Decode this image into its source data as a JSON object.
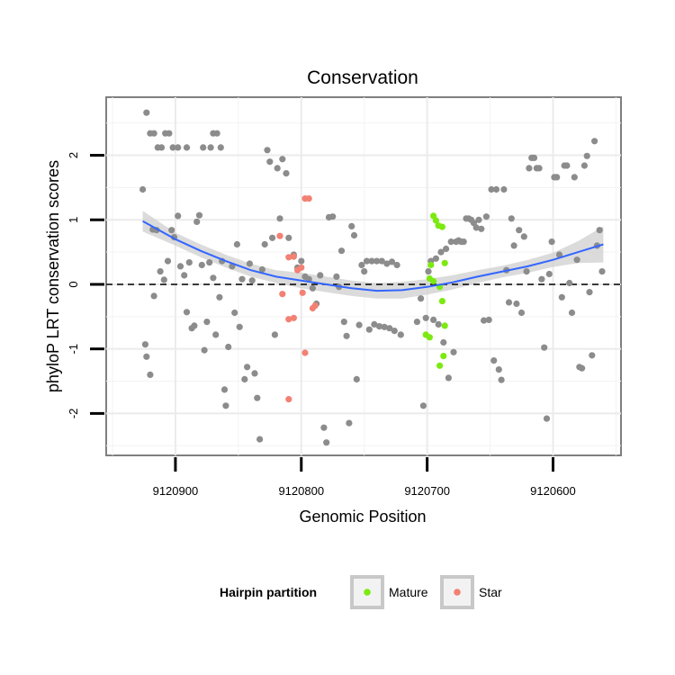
{
  "chart_data": {
    "type": "scatter",
    "title": "Conservation",
    "xlabel": "Genomic Position",
    "ylabel": "phyloP LRT conservation scores",
    "x_reversed": true,
    "xlim": [
      9120546,
      9120955
    ],
    "ylim": [
      -2.65,
      2.9
    ],
    "x_ticks": [
      9120900,
      9120800,
      9120700,
      9120600
    ],
    "y_ticks": [
      -2,
      -1,
      0,
      1,
      2
    ],
    "y_tick_labels": [
      "-2",
      "-1",
      "0",
      "1",
      "2"
    ],
    "reference_line": {
      "y": 0,
      "style": "dashed",
      "color": "#000000"
    },
    "grid": true,
    "legend": {
      "title": "Hairpin partition",
      "placement": "bottom",
      "entries": [
        {
          "label": "Mature",
          "color": "#7ce911"
        },
        {
          "label": "Star",
          "color": "#f28174"
        }
      ]
    },
    "colors": {
      "other": "#8c8c8c",
      "mature": "#7ce911",
      "star": "#f28174",
      "smooth": "#3366ff",
      "band": "#cfcfcf"
    },
    "smooth": {
      "x": [
        9120926,
        9120900,
        9120880,
        9120860,
        9120840,
        9120820,
        9120800,
        9120780,
        9120760,
        9120740,
        9120720,
        9120700,
        9120680,
        9120660,
        9120640,
        9120620,
        9120600,
        9120580,
        9120560
      ],
      "y": [
        0.98,
        0.7,
        0.52,
        0.36,
        0.22,
        0.12,
        0.06,
        0.0,
        -0.06,
        -0.1,
        -0.09,
        -0.04,
        0.03,
        0.12,
        0.2,
        0.28,
        0.38,
        0.5,
        0.62
      ],
      "lower": [
        0.82,
        0.6,
        0.42,
        0.26,
        0.12,
        0.02,
        -0.06,
        -0.12,
        -0.18,
        -0.22,
        -0.22,
        -0.16,
        -0.08,
        0.02,
        0.11,
        0.18,
        0.27,
        0.33,
        0.34
      ],
      "upper": [
        1.14,
        0.8,
        0.62,
        0.46,
        0.32,
        0.22,
        0.18,
        0.12,
        0.06,
        0.02,
        0.04,
        0.08,
        0.14,
        0.22,
        0.29,
        0.38,
        0.49,
        0.67,
        0.9
      ]
    },
    "series": [
      {
        "group": "other",
        "points": [
          [
            9120926,
            1.47
          ],
          [
            9120923,
            2.66
          ],
          [
            9120920,
            2.34
          ],
          [
            9120917,
            2.34
          ],
          [
            9120914,
            2.12
          ],
          [
            9120911,
            2.12
          ],
          [
            9120908,
            2.34
          ],
          [
            9120905,
            2.34
          ],
          [
            9120902,
            2.12
          ],
          [
            9120898,
            2.12
          ],
          [
            9120891,
            2.12
          ],
          [
            9120878,
            2.12
          ],
          [
            9120872,
            2.12
          ],
          [
            9120870,
            2.34
          ],
          [
            9120867,
            2.34
          ],
          [
            9120864,
            2.12
          ],
          [
            9120924,
            -0.93
          ],
          [
            9120923,
            -1.12
          ],
          [
            9120920,
            -1.4
          ],
          [
            9120917,
            -0.18
          ],
          [
            9120918,
            0.85
          ],
          [
            9120915,
            0.84
          ],
          [
            9120912,
            0.2
          ],
          [
            9120909,
            0.07
          ],
          [
            9120906,
            0.36
          ],
          [
            9120903,
            0.84
          ],
          [
            9120901,
            0.73
          ],
          [
            9120898,
            1.06
          ],
          [
            9120896,
            0.28
          ],
          [
            9120893,
            0.14
          ],
          [
            9120891,
            -0.43
          ],
          [
            9120889,
            0.34
          ],
          [
            9120887,
            -0.68
          ],
          [
            9120885,
            -0.64
          ],
          [
            9120883,
            0.97
          ],
          [
            9120881,
            1.07
          ],
          [
            9120879,
            0.3
          ],
          [
            9120877,
            -1.02
          ],
          [
            9120875,
            -0.58
          ],
          [
            9120873,
            0.34
          ],
          [
            9120870,
            0.1
          ],
          [
            9120868,
            -0.78
          ],
          [
            9120865,
            -0.2
          ],
          [
            9120863,
            0.36
          ],
          [
            9120861,
            -1.63
          ],
          [
            9120860,
            -1.88
          ],
          [
            9120858,
            -0.97
          ],
          [
            9120855,
            0.28
          ],
          [
            9120853,
            -0.44
          ],
          [
            9120851,
            0.62
          ],
          [
            9120849,
            -0.66
          ],
          [
            9120847,
            0.08
          ],
          [
            9120845,
            -1.47
          ],
          [
            9120843,
            -1.28
          ],
          [
            9120841,
            0.32
          ],
          [
            9120839,
            0.06
          ],
          [
            9120837,
            -1.38
          ],
          [
            9120835,
            -1.76
          ],
          [
            9120833,
            -2.4
          ],
          [
            9120831,
            0.23
          ],
          [
            9120829,
            0.62
          ],
          [
            9120827,
            2.08
          ],
          [
            9120825,
            1.9
          ],
          [
            9120823,
            0.72
          ],
          [
            9120821,
            -0.78
          ],
          [
            9120819,
            1.8
          ],
          [
            9120817,
            1.02
          ],
          [
            9120815,
            1.94
          ],
          [
            9120812,
            1.72
          ],
          [
            9120810,
            0.72
          ],
          [
            9120806,
            0.46
          ],
          [
            9120803,
            0.26
          ],
          [
            9120800,
            0.36
          ],
          [
            9120797,
            0.12
          ],
          [
            9120794,
            0.08
          ],
          [
            9120791,
            -0.06
          ],
          [
            9120788,
            -0.3
          ],
          [
            9120785,
            0.14
          ],
          [
            9120782,
            -2.22
          ],
          [
            9120780,
            -2.45
          ],
          [
            9120778,
            1.04
          ],
          [
            9120775,
            1.05
          ],
          [
            9120772,
            0.12
          ],
          [
            9120770,
            -0.04
          ],
          [
            9120768,
            0.52
          ],
          [
            9120766,
            -0.58
          ],
          [
            9120764,
            -0.8
          ],
          [
            9120762,
            -2.15
          ],
          [
            9120760,
            0.9
          ],
          [
            9120758,
            0.76
          ],
          [
            9120756,
            -1.47
          ],
          [
            9120754,
            -0.63
          ],
          [
            9120752,
            0.3
          ],
          [
            9120750,
            0.2
          ],
          [
            9120748,
            0.36
          ],
          [
            9120746,
            -0.7
          ],
          [
            9120744,
            0.36
          ],
          [
            9120742,
            -0.62
          ],
          [
            9120740,
            0.36
          ],
          [
            9120738,
            -0.65
          ],
          [
            9120736,
            0.36
          ],
          [
            9120734,
            -0.66
          ],
          [
            9120732,
            0.32
          ],
          [
            9120730,
            -0.68
          ],
          [
            9120728,
            0.35
          ],
          [
            9120726,
            -0.72
          ],
          [
            9120724,
            0.3
          ],
          [
            9120721,
            -0.78
          ],
          [
            9120708,
            -0.58
          ],
          [
            9120705,
            -0.22
          ],
          [
            9120703,
            -1.88
          ],
          [
            9120701,
            -0.52
          ],
          [
            9120699,
            0.2
          ],
          [
            9120697,
            0.36
          ],
          [
            9120695,
            -0.55
          ],
          [
            9120693,
            0.4
          ],
          [
            9120691,
            -0.62
          ],
          [
            9120689,
            0.5
          ],
          [
            9120687,
            -0.9
          ],
          [
            9120685,
            0.55
          ],
          [
            9120683,
            -1.45
          ],
          [
            9120681,
            0.66
          ],
          [
            9120679,
            -1.05
          ],
          [
            9120677,
            0.66
          ],
          [
            9120675,
            0.68
          ],
          [
            9120673,
            0.66
          ],
          [
            9120671,
            0.66
          ],
          [
            9120669,
            1.02
          ],
          [
            9120667,
            1.02
          ],
          [
            9120665,
            1.0
          ],
          [
            9120663,
            0.95
          ],
          [
            9120661,
            0.88
          ],
          [
            9120659,
            1.0
          ],
          [
            9120657,
            0.86
          ],
          [
            9120655,
            -0.56
          ],
          [
            9120653,
            1.05
          ],
          [
            9120651,
            -0.55
          ],
          [
            9120649,
            1.47
          ],
          [
            9120647,
            -1.18
          ],
          [
            9120645,
            1.47
          ],
          [
            9120643,
            -1.32
          ],
          [
            9120641,
            -1.48
          ],
          [
            9120639,
            1.47
          ],
          [
            9120637,
            0.22
          ],
          [
            9120635,
            -0.28
          ],
          [
            9120633,
            1.02
          ],
          [
            9120631,
            0.6
          ],
          [
            9120629,
            -0.3
          ],
          [
            9120627,
            0.84
          ],
          [
            9120625,
            -0.44
          ],
          [
            9120623,
            0.74
          ],
          [
            9120621,
            0.2
          ],
          [
            9120619,
            1.8
          ],
          [
            9120617,
            1.96
          ],
          [
            9120615,
            1.96
          ],
          [
            9120613,
            1.8
          ],
          [
            9120611,
            1.8
          ],
          [
            9120609,
            0.08
          ],
          [
            9120607,
            -0.98
          ],
          [
            9120605,
            -2.08
          ],
          [
            9120603,
            0.16
          ],
          [
            9120601,
            0.66
          ],
          [
            9120599,
            1.66
          ],
          [
            9120597,
            1.66
          ],
          [
            9120595,
            0.46
          ],
          [
            9120593,
            -0.2
          ],
          [
            9120591,
            1.84
          ],
          [
            9120589,
            1.84
          ],
          [
            9120587,
            0.02
          ],
          [
            9120585,
            -0.44
          ],
          [
            9120583,
            1.66
          ],
          [
            9120581,
            0.38
          ],
          [
            9120579,
            -1.28
          ],
          [
            9120577,
            -1.3
          ],
          [
            9120575,
            1.84
          ],
          [
            9120573,
            1.99
          ],
          [
            9120571,
            -0.12
          ],
          [
            9120569,
            -1.1
          ],
          [
            9120567,
            2.22
          ],
          [
            9120565,
            0.6
          ],
          [
            9120563,
            0.84
          ],
          [
            9120561,
            0.2
          ]
        ]
      },
      {
        "group": "mature",
        "points": [
          [
            9120695,
            1.06
          ],
          [
            9120693,
            0.99
          ],
          [
            9120691,
            0.91
          ],
          [
            9120688,
            0.89
          ],
          [
            9120686,
            0.33
          ],
          [
            9120697,
            0.3
          ],
          [
            9120698,
            0.09
          ],
          [
            9120695,
            0.05
          ],
          [
            9120690,
            -0.04
          ],
          [
            9120688,
            -0.26
          ],
          [
            9120686,
            -0.64
          ],
          [
            9120701,
            -0.78
          ],
          [
            9120698,
            -0.82
          ],
          [
            9120687,
            -1.11
          ],
          [
            9120690,
            -1.26
          ]
        ]
      },
      {
        "group": "star",
        "points": [
          [
            9120817,
            0.75
          ],
          [
            9120810,
            0.42
          ],
          [
            9120806,
            0.43
          ],
          [
            9120803,
            0.22
          ],
          [
            9120800,
            0.26
          ],
          [
            9120797,
            1.33
          ],
          [
            9120794,
            1.33
          ],
          [
            9120815,
            -0.15
          ],
          [
            9120810,
            -0.54
          ],
          [
            9120806,
            -0.52
          ],
          [
            9120799,
            -0.13
          ],
          [
            9120797,
            -1.06
          ],
          [
            9120791,
            -0.37
          ],
          [
            9120789,
            -0.33
          ],
          [
            9120810,
            -1.78
          ]
        ]
      }
    ]
  }
}
